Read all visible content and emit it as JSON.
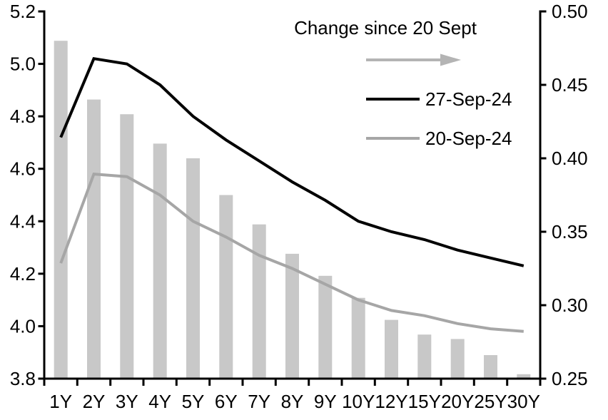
{
  "chart_data": {
    "type": "bar+line",
    "title": "",
    "categories": [
      "1Y",
      "2Y",
      "3Y",
      "4Y",
      "5Y",
      "6Y",
      "7Y",
      "8Y",
      "9Y",
      "10Y",
      "12Y",
      "15Y",
      "20Y",
      "25Y",
      "30Y"
    ],
    "series": [
      {
        "name": "27-Sep-24",
        "type": "line",
        "axis": "left",
        "color": "#000000",
        "stroke_width": 4,
        "values": [
          4.72,
          5.02,
          5.0,
          4.92,
          4.8,
          4.71,
          4.63,
          4.55,
          4.48,
          4.4,
          4.36,
          4.33,
          4.29,
          4.26,
          4.23
        ]
      },
      {
        "name": "20-Sep-24",
        "type": "line",
        "axis": "left",
        "color": "#a6a6a6",
        "stroke_width": 4,
        "values": [
          4.24,
          4.58,
          4.57,
          4.5,
          4.4,
          4.34,
          4.27,
          4.22,
          4.16,
          4.1,
          4.06,
          4.04,
          4.01,
          3.99,
          3.98
        ]
      },
      {
        "name": "Change since 20 Sept",
        "type": "bar",
        "axis": "right",
        "color": "#c8c8c8",
        "values": [
          0.48,
          0.44,
          0.43,
          0.41,
          0.4,
          0.375,
          0.355,
          0.335,
          0.32,
          0.305,
          0.29,
          0.28,
          0.277,
          0.266,
          0.253
        ]
      }
    ],
    "left_axis": {
      "min": 3.8,
      "max": 5.2,
      "tick_labels": [
        "5.2",
        "5.0",
        "4.8",
        "4.6",
        "4.4",
        "4.2",
        "4.0",
        "3.8"
      ]
    },
    "right_axis": {
      "min": 0.25,
      "max": 0.5,
      "tick_labels": [
        "0.50",
        "0.45",
        "0.40",
        "0.35",
        "0.30",
        "0.25"
      ]
    },
    "x_axis": {
      "tick_labels": [
        "1Y",
        "2Y",
        "3Y",
        "4Y",
        "5Y",
        "6Y",
        "7Y",
        "8Y",
        "9Y",
        "10Y",
        "12Y",
        "15Y",
        "20Y",
        "25Y",
        "30Y"
      ]
    },
    "grid": false,
    "legend": {
      "position": "top-right-inside",
      "annotation": "Change since 20 Sept",
      "arrow_icon": "right-arrow",
      "arrow_color": "#b4b4b4",
      "items": [
        {
          "label": "27-Sep-24",
          "color": "#000000"
        },
        {
          "label": "20-Sep-24",
          "color": "#a6a6a6"
        }
      ]
    }
  },
  "colors": {
    "background": "#ffffff",
    "axis": "#000000",
    "bar_fill": "#c8c8c8"
  }
}
